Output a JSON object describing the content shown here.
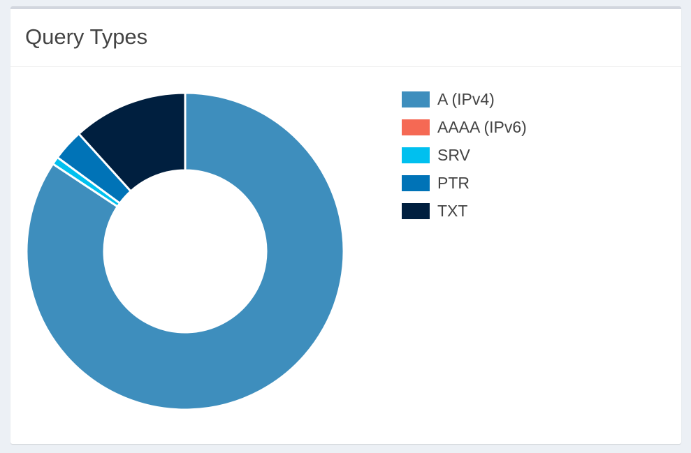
{
  "panel": {
    "title": "Query Types"
  },
  "chart_data": {
    "type": "pie",
    "donut": true,
    "categories": [
      "A (IPv4)",
      "AAAA (IPv6)",
      "SRV",
      "PTR",
      "TXT"
    ],
    "values": [
      84.3,
      0.0,
      0.8,
      3.2,
      11.7
    ],
    "colors": [
      "#3e8ebd",
      "#f56954",
      "#00c0ef",
      "#0073b7",
      "#001f3f"
    ],
    "legend_position": "right"
  }
}
